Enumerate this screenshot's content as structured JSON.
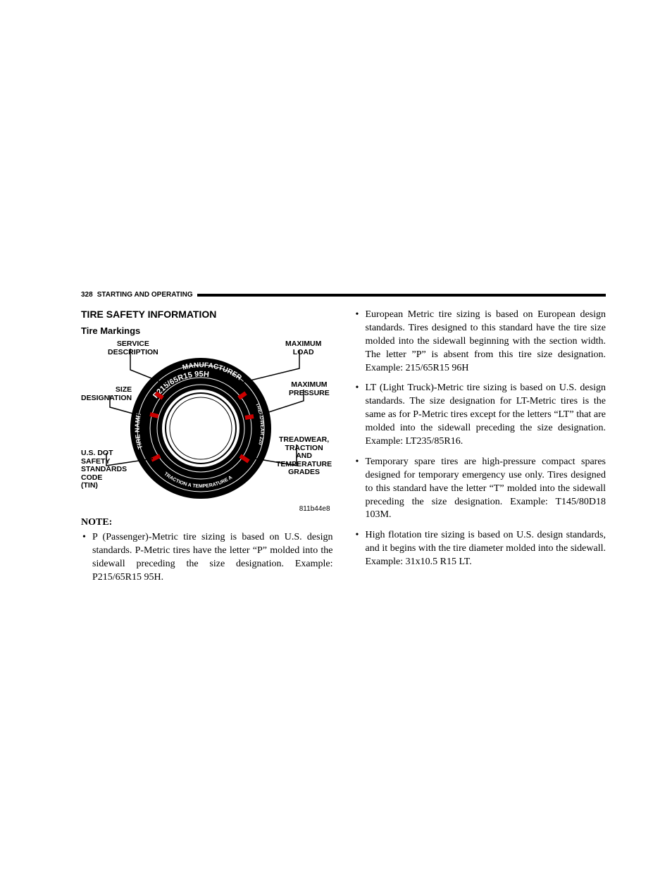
{
  "header": {
    "page_number": "328",
    "section": "STARTING AND OPERATING"
  },
  "headings": {
    "h1": "TIRE SAFETY INFORMATION",
    "h2": "Tire Markings",
    "note": "NOTE:"
  },
  "diagram": {
    "labels": {
      "service_description": "SERVICE\nDESCRIPTION",
      "size_designation": "SIZE\nDESIGNATION",
      "dot_code": "U.S. DOT\nSAFETY\nSTANDARDS\nCODE\n(TIN)",
      "max_load": "MAXIMUM\nLOAD",
      "max_pressure": "MAXIMUM\nPRESSURE",
      "grades": "TREADWEAR,\nTRACTION\nAND\nTEMPERATURE\nGRADES"
    },
    "tire_text": {
      "top_arc": "P215/65R15 95H",
      "manufacturer": "MANUFACTURER",
      "tire_name": "TIRE NAME",
      "treadwear": "TREADWEAR 220",
      "bottom_arc": "TRACTION A TEMPERATURE A"
    },
    "image_code": "811b44e8",
    "colors": {
      "tire_fill": "#000000",
      "rim_fill": "#ffffff",
      "line": "#000000"
    }
  },
  "bullets": {
    "left": [
      "P (Passenger)-Metric tire sizing is based on U.S. design standards. P-Metric tires have the letter “P” molded into the sidewall preceding the size designation. Example: P215/65R15 95H."
    ],
    "right": [
      "European Metric tire sizing is based on European design standards. Tires designed to this standard have the tire size molded into the sidewall beginning with the section width. The letter ”P” is absent from this tire size designation. Example: 215/65R15 96H",
      "LT (Light Truck)-Metric tire sizing is based on U.S. design standards. The size designation for LT-Metric tires is the same as for P-Metric tires except for the letters “LT” that are molded into the sidewall preceding the size designation. Example: LT235/85R16.",
      "Temporary spare tires are high-pressure compact spares designed for temporary emergency use only. Tires designed to this standard have the letter “T” molded into the sidewall preceding the size designation. Example: T145/80D18 103M.",
      "High flotation tire sizing is based on U.S. design standards, and it begins with the tire diameter molded into the sidewall. Example: 31x10.5 R15 LT."
    ]
  }
}
